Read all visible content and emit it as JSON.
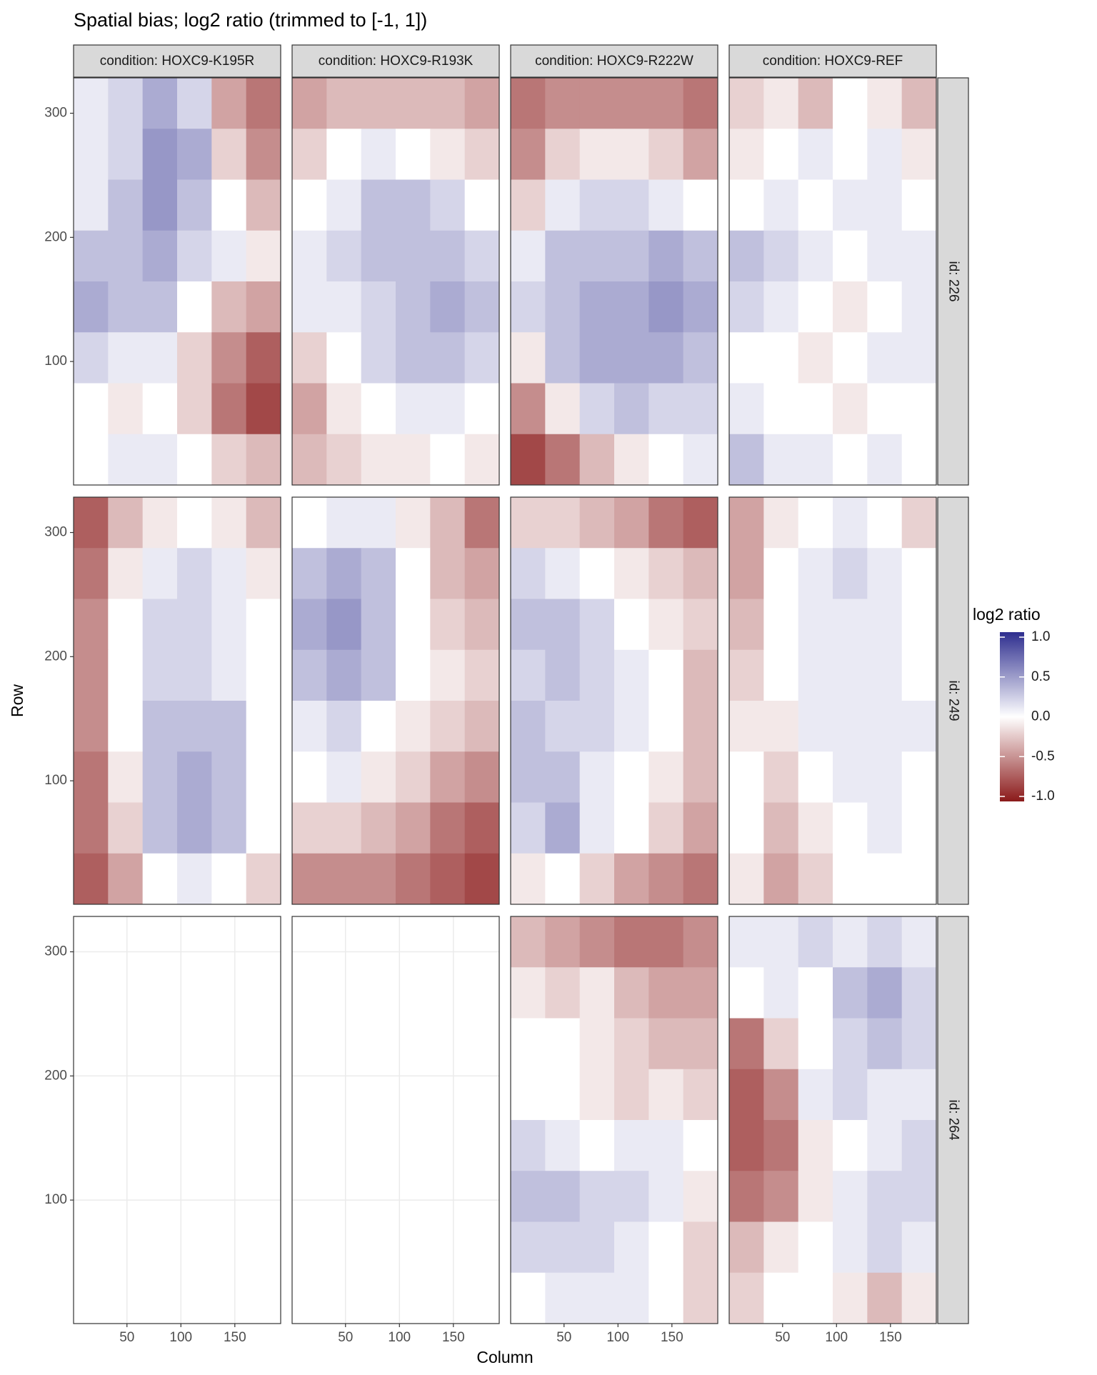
{
  "chart_data": {
    "type": "heatmap",
    "title": "Spatial bias; log2 ratio (trimmed to [-1, 1])",
    "x_label": "Column",
    "y_label": "Row",
    "xlim": [
      0.5,
      192.5
    ],
    "ylim": [
      0.5,
      328.5
    ],
    "xticks": [
      50,
      100,
      150
    ],
    "yticks": [
      100,
      200,
      300
    ],
    "grid": true,
    "xbins": [
      0.5,
      32.5,
      64.5,
      96.5,
      128.5,
      160.5,
      192.5
    ],
    "ybins": [
      328.5,
      287.5,
      246.5,
      205.5,
      164.5,
      123.5,
      82.5,
      41.5,
      0.5
    ],
    "facet_cols": [
      "condition: HOXC9-K195R",
      "condition: HOXC9-R193K",
      "condition: HOXC9-R222W",
      "condition: HOXC9-REF"
    ],
    "facet_rows": [
      "id: 226",
      "id: 249",
      "id: 264"
    ],
    "colors": {
      "low": "#8b1a1a",
      "mid": "#ffffff",
      "high": "#2e2e8f"
    },
    "legend": {
      "title": "log2 ratio",
      "limits": [
        -1,
        1
      ],
      "ticks": [
        {
          "value": 1,
          "label": "1.0"
        },
        0.5,
        {
          "value": 0,
          "label": "0.0"
        },
        -0.5,
        {
          "value": -1,
          "label": "-1.0"
        }
      ]
    },
    "panels": [
      [
        {
          "values": [
            [
              0.1,
              0.2,
              0.4,
              0.2,
              -0.4,
              -0.6
            ],
            [
              0.1,
              0.2,
              0.5,
              0.4,
              -0.2,
              -0.5
            ],
            [
              0.1,
              0.3,
              0.5,
              0.3,
              0,
              -0.3
            ],
            [
              0.3,
              0.3,
              0.4,
              0.2,
              0.1,
              -0.1
            ],
            [
              0.4,
              0.3,
              0.3,
              0,
              -0.3,
              -0.4
            ],
            [
              0.2,
              0.1,
              0.1,
              -0.2,
              -0.5,
              -0.7
            ],
            [
              0,
              -0.1,
              0,
              -0.2,
              -0.6,
              -0.8
            ],
            [
              0,
              0.1,
              0.1,
              0,
              -0.2,
              -0.3
            ]
          ]
        },
        {
          "values": [
            [
              -0.4,
              -0.3,
              -0.3,
              -0.3,
              -0.3,
              -0.4
            ],
            [
              -0.2,
              0,
              0.1,
              0,
              -0.1,
              -0.2
            ],
            [
              0,
              0.1,
              0.3,
              0.3,
              0.2,
              0
            ],
            [
              0.1,
              0.2,
              0.3,
              0.3,
              0.3,
              0.2
            ],
            [
              0.1,
              0.1,
              0.2,
              0.3,
              0.4,
              0.3
            ],
            [
              -0.2,
              0,
              0.2,
              0.3,
              0.3,
              0.2
            ],
            [
              -0.4,
              -0.1,
              0,
              0.1,
              0.1,
              0
            ],
            [
              -0.3,
              -0.2,
              -0.1,
              -0.1,
              0,
              -0.1
            ]
          ]
        },
        {
          "values": [
            [
              -0.6,
              -0.5,
              -0.5,
              -0.5,
              -0.5,
              -0.6
            ],
            [
              -0.5,
              -0.2,
              -0.1,
              -0.1,
              -0.2,
              -0.4
            ],
            [
              -0.2,
              0.1,
              0.2,
              0.2,
              0.1,
              0
            ],
            [
              0.1,
              0.3,
              0.3,
              0.3,
              0.4,
              0.3
            ],
            [
              0.2,
              0.3,
              0.4,
              0.4,
              0.5,
              0.4
            ],
            [
              -0.1,
              0.3,
              0.4,
              0.4,
              0.4,
              0.3
            ],
            [
              -0.5,
              -0.1,
              0.2,
              0.3,
              0.2,
              0.2
            ],
            [
              -0.8,
              -0.6,
              -0.3,
              -0.1,
              0,
              0.1
            ]
          ]
        },
        {
          "values": [
            [
              -0.2,
              -0.1,
              -0.3,
              0,
              -0.1,
              -0.3
            ],
            [
              -0.1,
              0,
              0.1,
              0,
              0.1,
              -0.1
            ],
            [
              0,
              0.1,
              0,
              0.1,
              0.1,
              0
            ],
            [
              0.3,
              0.2,
              0.1,
              0,
              0.1,
              0.1
            ],
            [
              0.2,
              0.1,
              0,
              -0.1,
              0,
              0.1
            ],
            [
              0,
              0,
              -0.1,
              0,
              0.1,
              0.1
            ],
            [
              0.1,
              0,
              0,
              -0.1,
              0,
              0
            ],
            [
              0.3,
              0.1,
              0.1,
              0,
              0.1,
              0
            ]
          ]
        }
      ],
      [
        {
          "values": [
            [
              -0.7,
              -0.3,
              -0.1,
              0,
              -0.1,
              -0.3
            ],
            [
              -0.6,
              -0.1,
              0.1,
              0.2,
              0.1,
              -0.1
            ],
            [
              -0.5,
              0,
              0.2,
              0.2,
              0.1,
              0
            ],
            [
              -0.5,
              0,
              0.2,
              0.2,
              0.1,
              0
            ],
            [
              -0.5,
              0,
              0.3,
              0.3,
              0.3,
              0
            ],
            [
              -0.6,
              -0.1,
              0.3,
              0.4,
              0.3,
              0
            ],
            [
              -0.6,
              -0.2,
              0.3,
              0.4,
              0.3,
              0
            ],
            [
              -0.7,
              -0.4,
              0,
              0.1,
              0,
              -0.2
            ]
          ]
        },
        {
          "values": [
            [
              0,
              0.1,
              0.1,
              -0.1,
              -0.3,
              -0.6
            ],
            [
              0.3,
              0.4,
              0.3,
              0,
              -0.3,
              -0.4
            ],
            [
              0.4,
              0.5,
              0.3,
              0,
              -0.2,
              -0.3
            ],
            [
              0.3,
              0.4,
              0.3,
              0,
              -0.1,
              -0.2
            ],
            [
              0.1,
              0.2,
              0,
              -0.1,
              -0.2,
              -0.3
            ],
            [
              0,
              0.1,
              -0.1,
              -0.2,
              -0.4,
              -0.5
            ],
            [
              -0.2,
              -0.2,
              -0.3,
              -0.4,
              -0.6,
              -0.7
            ],
            [
              -0.5,
              -0.5,
              -0.5,
              -0.6,
              -0.7,
              -0.8
            ]
          ]
        },
        {
          "values": [
            [
              -0.2,
              -0.2,
              -0.3,
              -0.4,
              -0.6,
              -0.7
            ],
            [
              0.2,
              0.1,
              0,
              -0.1,
              -0.2,
              -0.3
            ],
            [
              0.3,
              0.3,
              0.2,
              0,
              -0.1,
              -0.2
            ],
            [
              0.2,
              0.3,
              0.2,
              0.1,
              0,
              -0.3
            ],
            [
              0.3,
              0.2,
              0.2,
              0.1,
              0,
              -0.3
            ],
            [
              0.3,
              0.3,
              0.1,
              0,
              -0.1,
              -0.3
            ],
            [
              0.2,
              0.4,
              0.1,
              0,
              -0.2,
              -0.4
            ],
            [
              -0.1,
              0,
              -0.2,
              -0.4,
              -0.5,
              -0.6
            ]
          ]
        },
        {
          "values": [
            [
              -0.4,
              -0.1,
              0,
              0.1,
              0,
              -0.2
            ],
            [
              -0.4,
              0,
              0.1,
              0.2,
              0.1,
              0
            ],
            [
              -0.3,
              0,
              0.1,
              0.1,
              0.1,
              0
            ],
            [
              -0.2,
              0,
              0.1,
              0.1,
              0.1,
              0
            ],
            [
              -0.1,
              -0.1,
              0.1,
              0.1,
              0.1,
              0.1
            ],
            [
              0,
              -0.2,
              0,
              0.1,
              0.1,
              0
            ],
            [
              0,
              -0.3,
              -0.1,
              0,
              0.1,
              0
            ],
            [
              -0.1,
              -0.4,
              -0.2,
              0,
              0,
              0
            ]
          ]
        }
      ],
      [
        null,
        null,
        {
          "values": [
            [
              -0.3,
              -0.4,
              -0.5,
              -0.6,
              -0.6,
              -0.5
            ],
            [
              -0.1,
              -0.2,
              -0.1,
              -0.3,
              -0.4,
              -0.4
            ],
            [
              0,
              0,
              -0.1,
              -0.2,
              -0.3,
              -0.3
            ],
            [
              0,
              0,
              -0.1,
              -0.2,
              -0.1,
              -0.2
            ],
            [
              0.2,
              0.1,
              0,
              0.1,
              0.1,
              0
            ],
            [
              0.3,
              0.3,
              0.2,
              0.2,
              0.1,
              -0.1
            ],
            [
              0.2,
              0.2,
              0.2,
              0.1,
              0,
              -0.2
            ],
            [
              0,
              0.1,
              0.1,
              0.1,
              0,
              -0.2
            ]
          ]
        },
        {
          "values": [
            [
              0.1,
              0.1,
              0.2,
              0.1,
              0.2,
              0.1
            ],
            [
              0,
              0.1,
              0,
              0.3,
              0.4,
              0.2
            ],
            [
              -0.6,
              -0.2,
              0,
              0.2,
              0.3,
              0.2
            ],
            [
              -0.7,
              -0.5,
              0.1,
              0.2,
              0.1,
              0.1
            ],
            [
              -0.7,
              -0.6,
              -0.1,
              0,
              0.1,
              0.2
            ],
            [
              -0.6,
              -0.5,
              -0.1,
              0.1,
              0.2,
              0.2
            ],
            [
              -0.3,
              -0.1,
              0,
              0.1,
              0.2,
              0.1
            ],
            [
              -0.2,
              0,
              0,
              -0.1,
              -0.3,
              -0.1
            ]
          ]
        }
      ]
    ]
  }
}
